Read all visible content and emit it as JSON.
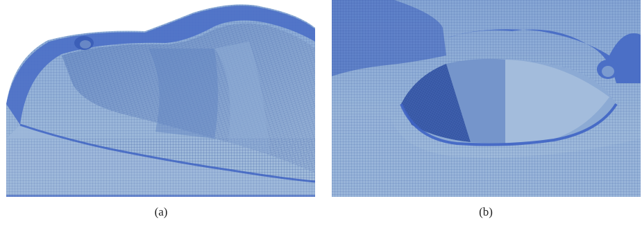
{
  "figure": {
    "panels": [
      {
        "label": "(a)"
      },
      {
        "label": "(b)"
      }
    ]
  },
  "colors": {
    "mesh_dark": "#3f64c4",
    "mesh_mid": "#7f9fcf",
    "mesh_light": "#a9c3dc",
    "grid_line": "#2e4f9a"
  }
}
